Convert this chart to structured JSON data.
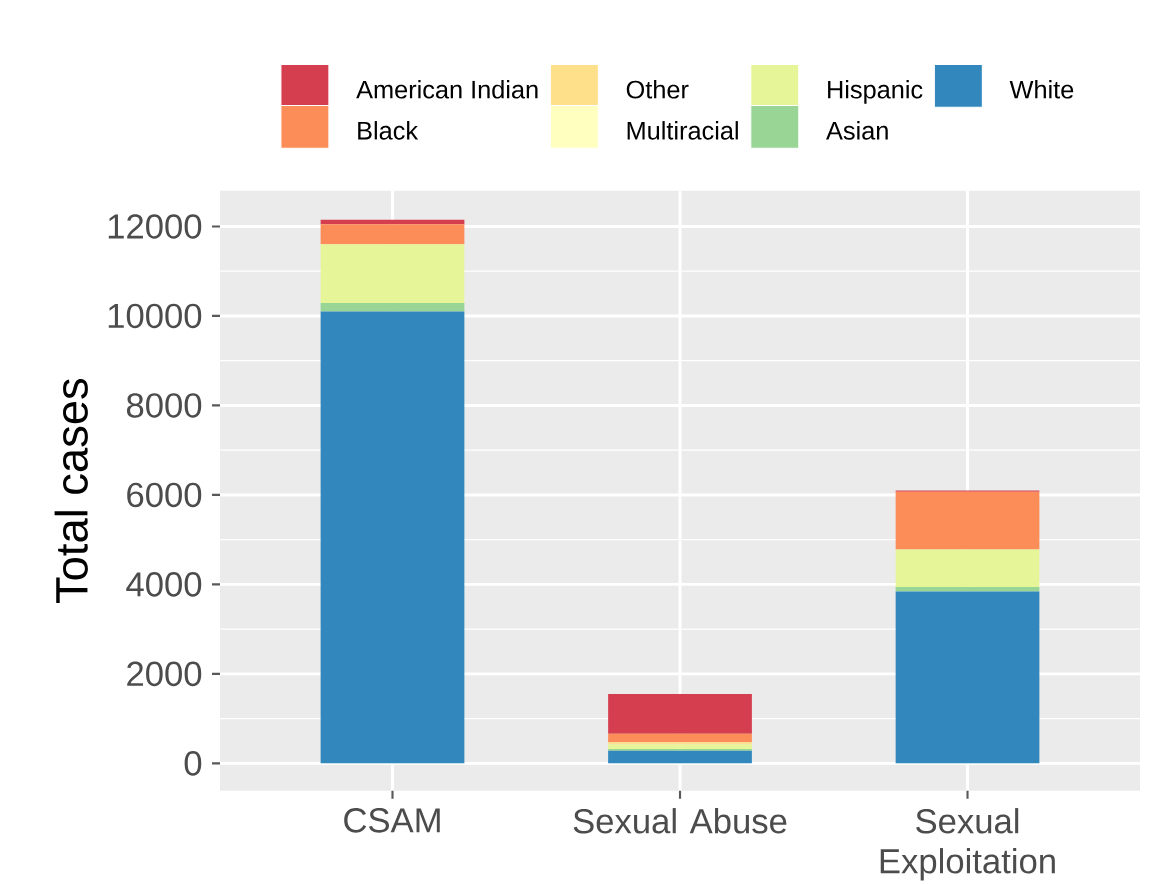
{
  "chart_data": {
    "type": "bar",
    "stacked": true,
    "ylabel": "Total cases",
    "categories": [
      "CSAM",
      "Sexual Abuse",
      "Sexual Exploitation"
    ],
    "series": [
      {
        "name": "White",
        "color": "#3288bd",
        "values": [
          10100,
          280,
          3840
        ]
      },
      {
        "name": "Asian",
        "color": "#99d594",
        "values": [
          190,
          40,
          100
        ]
      },
      {
        "name": "Hispanic",
        "color": "#e6f598",
        "values": [
          1310,
          100,
          840
        ]
      },
      {
        "name": "Multiracial",
        "color": "#ffffbf",
        "values": [
          null,
          null,
          null
        ]
      },
      {
        "name": "Other",
        "color": "#fee08b",
        "values": [
          null,
          50,
          null
        ]
      },
      {
        "name": "Black",
        "color": "#fc8d59",
        "values": [
          450,
          190,
          1290
        ]
      },
      {
        "name": "American Indian",
        "color": "#d53e4f",
        "values": [
          100,
          890,
          30
        ]
      }
    ],
    "ylim": [
      -610,
      12800
    ],
    "yticks": [
      0,
      2000,
      4000,
      6000,
      8000,
      10000,
      12000
    ],
    "grid": true,
    "legend": "top"
  }
}
